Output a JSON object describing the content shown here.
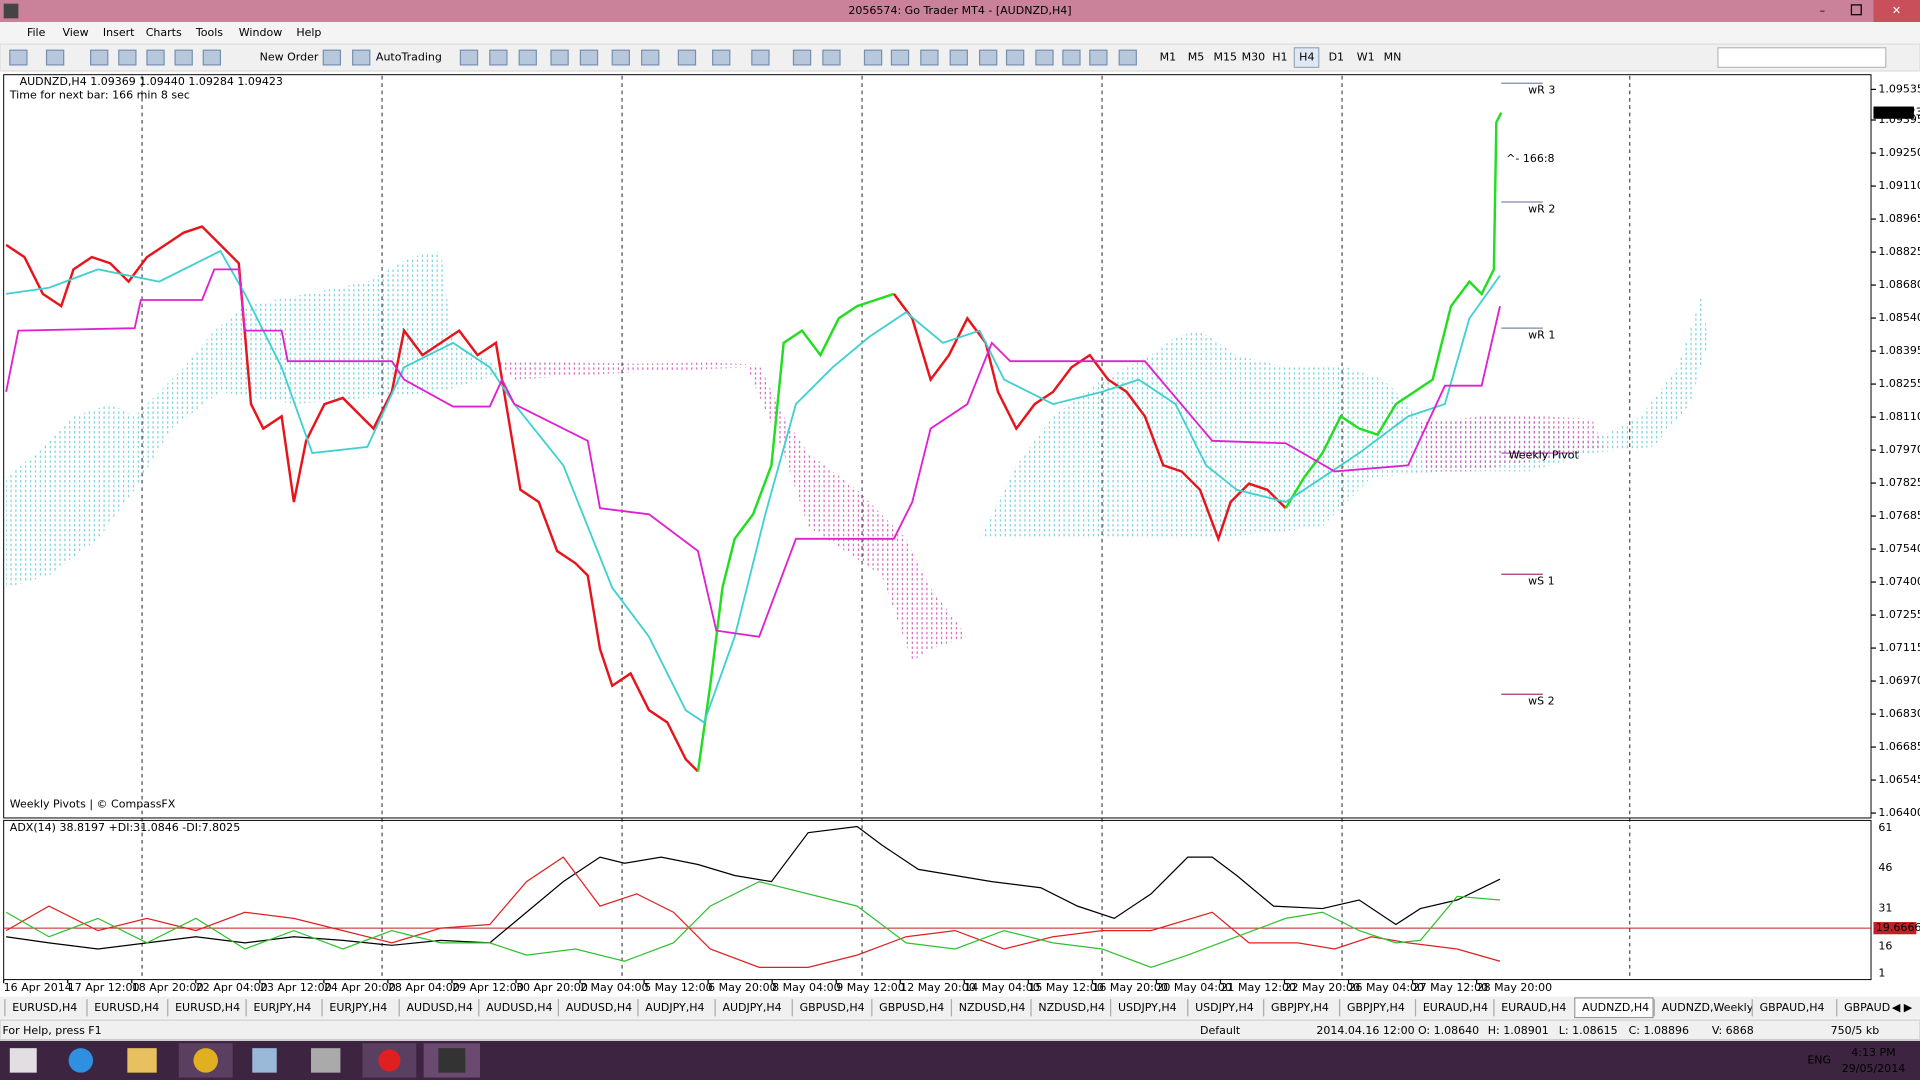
{
  "window": {
    "title": "2056574: Go Trader MT4 - [AUDNZD,H4]"
  },
  "menu": [
    "File",
    "View",
    "Insert",
    "Charts",
    "Tools",
    "Window",
    "Help"
  ],
  "toolbar": {
    "buttons": [
      "New Order",
      "AutoTrading"
    ],
    "timeframes": [
      "M1",
      "M5",
      "M15",
      "M30",
      "H1",
      "H4",
      "D1",
      "W1",
      "MN"
    ]
  },
  "chart": {
    "header": "AUDNZD,H4  1.09369 1.09440 1.09284 1.09423",
    "next_bar": "Time for next bar: 166 min 8 sec",
    "countdown": "^- 166:8",
    "current_price": "1.09423",
    "price_axis": [
      "1.09535",
      "1.09395",
      "1.09250",
      "1.09110",
      "1.08965",
      "1.08825",
      "1.08680",
      "1.08540",
      "1.08395",
      "1.08255",
      "1.08110",
      "1.07970",
      "1.07825",
      "1.07685",
      "1.07540",
      "1.07400",
      "1.07255",
      "1.07115",
      "1.06970",
      "1.06830",
      "1.06685",
      "1.06545",
      "1.06400"
    ],
    "pivot_labels": [
      "wR 3",
      "wR 2",
      "wR 1",
      "Weekly Pivot",
      "wS 1",
      "wS 2"
    ],
    "watermark": "Weekly Pivots | © CompassFX"
  },
  "indicator": {
    "header": "ADX(14) 38.8197 +DI:31.0846 -DI:7.8025",
    "axis": [
      "61",
      "46",
      "31",
      "16",
      "1"
    ],
    "level": "19.6666"
  },
  "time_axis": [
    "16 Apr 2014",
    "17 Apr 12:00",
    "18 Apr 20:00",
    "22 Apr 04:00",
    "23 Apr 12:00",
    "24 Apr 20:00",
    "28 Apr 04:00",
    "29 Apr 12:00",
    "30 Apr 20:00",
    "2 May 04:00",
    "5 May 12:00",
    "6 May 20:00",
    "8 May 04:00",
    "9 May 12:00",
    "12 May 20:00",
    "14 May 04:00",
    "15 May 12:00",
    "16 May 20:00",
    "20 May 04:00",
    "21 May 12:00",
    "22 May 20:00",
    "26 May 04:00",
    "27 May 12:00",
    "28 May 20:00"
  ],
  "tabs": [
    "EURUSD,H4",
    "EURUSD,H4",
    "EURUSD,H4",
    "EURJPY,H4",
    "EURJPY,H4",
    "AUDUSD,H4",
    "AUDUSD,H4",
    "AUDUSD,H4",
    "AUDJPY,H4",
    "AUDJPY,H4",
    "GBPUSD,H4",
    "GBPUSD,H4",
    "NZDUSD,H4",
    "NZDUSD,H4",
    "USDJPY,H4",
    "USDJPY,H4",
    "GBPJPY,H4",
    "GBPJPY,H4",
    "EURAUD,H4",
    "EURAUD,H4",
    "AUDNZD,H4",
    "AUDNZD,Weekly",
    "GBPAUD,H4",
    "GBPAUD"
  ],
  "status": [
    "For Help, press F1",
    "Default",
    "2014.04.16 12:00",
    "O: 1.08640",
    "H: 1.08901",
    "L: 1.08615",
    "C: 1.08896",
    "V: 6868",
    "750/5 kb"
  ],
  "taskbar": {
    "lang": "ENG",
    "time": "4:13 PM",
    "date": "29/05/2014"
  }
}
